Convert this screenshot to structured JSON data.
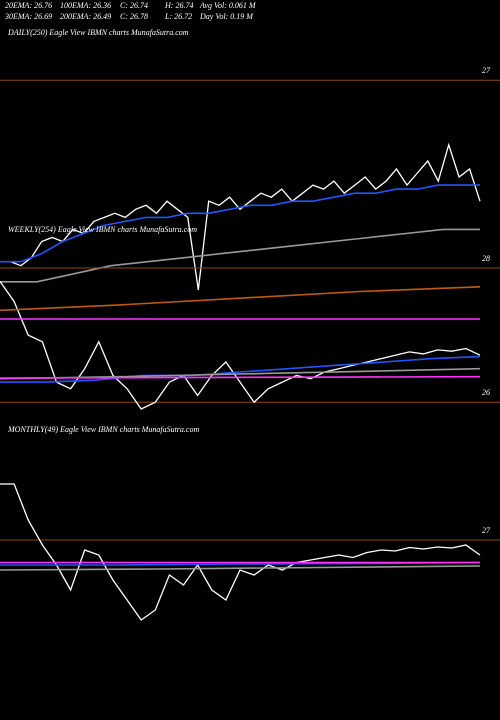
{
  "header": [
    "20EMA: 26.76",
    "100EMA: 26.36",
    "C: 26.74",
    "H: 26.74",
    "Avg Vol: 0.061 M",
    "30EMA: 26.69",
    "200EMA: 26.49",
    "C: 26.78",
    "L: 26.72",
    "Day Vol: 0.19 M"
  ],
  "chart_data": [
    {
      "type": "line",
      "title": "DAILY(250) Eagle  View  IBMN  charts MunafaSutra.com",
      "ylim": [
        26.45,
        27.1
      ],
      "yticks": [
        27
      ],
      "grid": true,
      "series": [
        {
          "name": "Price",
          "color": "#ffffff",
          "values": [
            26.55,
            26.55,
            26.54,
            26.56,
            26.6,
            26.61,
            26.6,
            26.63,
            26.62,
            26.65,
            26.66,
            26.67,
            26.66,
            26.68,
            26.69,
            26.67,
            26.7,
            26.68,
            26.66,
            26.48,
            26.7,
            26.69,
            26.71,
            26.68,
            26.7,
            26.72,
            26.71,
            26.73,
            26.7,
            26.72,
            26.74,
            26.73,
            26.75,
            26.72,
            26.74,
            26.76,
            26.73,
            26.75,
            26.78,
            26.74,
            26.77,
            26.8,
            26.75,
            26.84,
            26.76,
            26.78,
            26.7
          ]
        },
        {
          "name": "EMA20",
          "color": "#2255ff",
          "values": [
            26.55,
            26.55,
            26.57,
            26.6,
            26.62,
            26.64,
            26.65,
            26.66,
            26.66,
            26.67,
            26.67,
            26.68,
            26.69,
            26.69,
            26.7,
            26.7,
            26.71,
            26.72,
            26.72,
            26.73,
            26.73,
            26.74,
            26.74,
            26.74
          ]
        },
        {
          "name": "EMA100",
          "color": "#999999",
          "values": [
            26.5,
            26.5,
            26.52,
            26.54,
            26.55,
            26.56,
            26.57,
            26.58,
            26.59,
            26.6,
            26.61,
            26.62,
            26.63,
            26.63
          ]
        }
      ]
    },
    {
      "type": "line",
      "title": "WEEKLY(254) Eagle  View  IBMN  charts MunafaSutra.com",
      "ylim": [
        25.81,
        28.64
      ],
      "yticks": [
        28,
        26
      ],
      "grid": true,
      "series": [
        {
          "name": "Price",
          "color": "#ffffff",
          "values": [
            27.8,
            27.5,
            27.0,
            26.9,
            26.3,
            26.2,
            26.5,
            26.9,
            26.4,
            26.2,
            25.9,
            26.0,
            26.3,
            26.4,
            26.1,
            26.4,
            26.6,
            26.3,
            26.0,
            26.2,
            26.3,
            26.4,
            26.35,
            26.45,
            26.5,
            26.55,
            26.6,
            26.65,
            26.7,
            26.75,
            26.72,
            26.78,
            26.76,
            26.8,
            26.7
          ]
        },
        {
          "name": "EMA20",
          "color": "#2255ff",
          "values": [
            26.3,
            26.3,
            26.33,
            26.4,
            26.4,
            26.45,
            26.5,
            26.55,
            26.6,
            26.65,
            26.68
          ]
        },
        {
          "name": "EMA100",
          "color": "#999999",
          "values": [
            26.35,
            26.38,
            26.42,
            26.46,
            26.5
          ]
        },
        {
          "name": "EMA200",
          "color": "#c05a10",
          "values": [
            27.37,
            27.45,
            27.55,
            27.65,
            27.72
          ]
        },
        {
          "name": "Upper",
          "color": "#ff33ff",
          "values": [
            27.24,
            27.24
          ]
        },
        {
          "name": "Lower",
          "color": "#ff33ff",
          "values": [
            26.36,
            26.38
          ]
        }
      ]
    },
    {
      "type": "line",
      "title": "MONTHLY(49) Eagle  View  IBMN  charts MunafaSutra.com",
      "ylim": [
        23.5,
        29.3
      ],
      "yticks": [
        27
      ],
      "grid": true,
      "series": [
        {
          "name": "Price",
          "color": "#ffffff",
          "values": [
            28.12,
            28.12,
            27.4,
            26.9,
            26.5,
            26.0,
            26.8,
            26.7,
            26.2,
            25.8,
            25.4,
            25.6,
            26.3,
            26.1,
            26.5,
            26.0,
            25.8,
            26.4,
            26.3,
            26.5,
            26.4,
            26.55,
            26.6,
            26.65,
            26.7,
            26.65,
            26.75,
            26.8,
            26.78,
            26.85,
            26.82,
            26.86,
            26.84,
            26.9,
            26.7
          ]
        },
        {
          "name": "EMA20",
          "color": "#2255ff",
          "values": [
            26.5,
            26.5,
            26.52,
            26.53,
            26.55
          ]
        },
        {
          "name": "EMA100",
          "color": "#999999",
          "values": [
            26.4,
            26.42,
            26.45,
            26.48
          ]
        },
        {
          "name": "Band",
          "color": "#ff33ff",
          "values": [
            26.55,
            26.55
          ]
        }
      ]
    }
  ]
}
